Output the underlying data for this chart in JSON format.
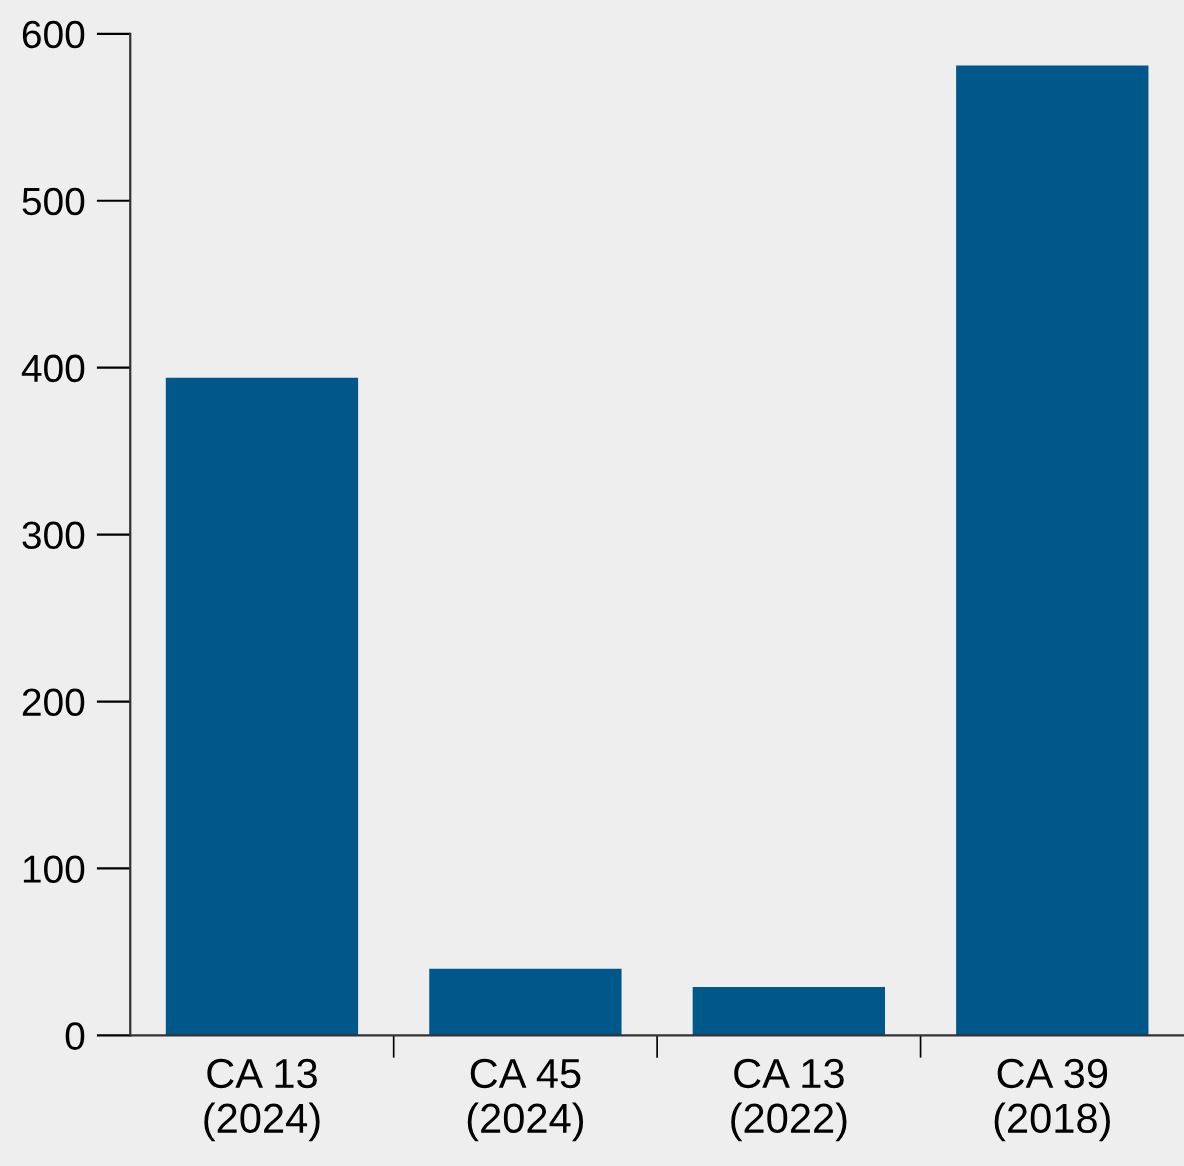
{
  "chart_data": {
    "type": "bar",
    "categories": [
      "CA 13\n(2024)",
      "CA 45\n(2024)",
      "CA 13\n(2022)",
      "CA 39\n(2018)"
    ],
    "values": [
      394,
      40,
      29,
      581
    ],
    "color": "#00578a",
    "ylim": [
      0,
      600
    ],
    "yticks": [
      0,
      100,
      200,
      300,
      400,
      500,
      600
    ],
    "grid": false,
    "legend": false
  }
}
